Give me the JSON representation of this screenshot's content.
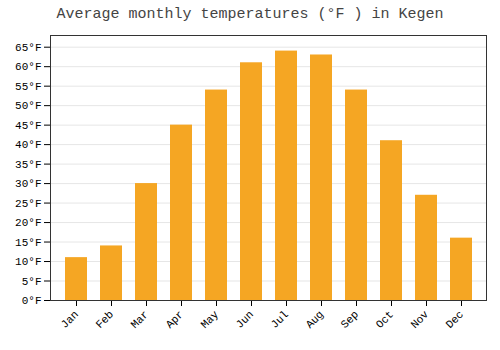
{
  "chart_data": {
    "type": "bar",
    "title": "Average monthly temperatures (°F ) in Kegen",
    "categories": [
      "Jan",
      "Feb",
      "Mar",
      "Apr",
      "May",
      "Jun",
      "Jul",
      "Aug",
      "Sep",
      "Oct",
      "Nov",
      "Dec"
    ],
    "values": [
      11,
      14,
      30,
      45,
      54,
      61,
      64,
      63,
      54,
      41,
      27,
      16
    ],
    "color": "#F5A623",
    "ylim": [
      0,
      68
    ],
    "yticks": [
      {
        "value": 0,
        "label": "0°F"
      },
      {
        "value": 5,
        "label": "5°F"
      },
      {
        "value": 10,
        "label": "10°F"
      },
      {
        "value": 15,
        "label": "15°F"
      },
      {
        "value": 20,
        "label": "20°F"
      },
      {
        "value": 25,
        "label": "25°F"
      },
      {
        "value": 30,
        "label": "30°F"
      },
      {
        "value": 35,
        "label": "35°F"
      },
      {
        "value": 40,
        "label": "40°F"
      },
      {
        "value": 45,
        "label": "45°F"
      },
      {
        "value": 50,
        "label": "50°F"
      },
      {
        "value": 55,
        "label": "55°F"
      },
      {
        "value": 60,
        "label": "60°F"
      },
      {
        "value": 65,
        "label": "65°F"
      }
    ],
    "grid": true
  }
}
